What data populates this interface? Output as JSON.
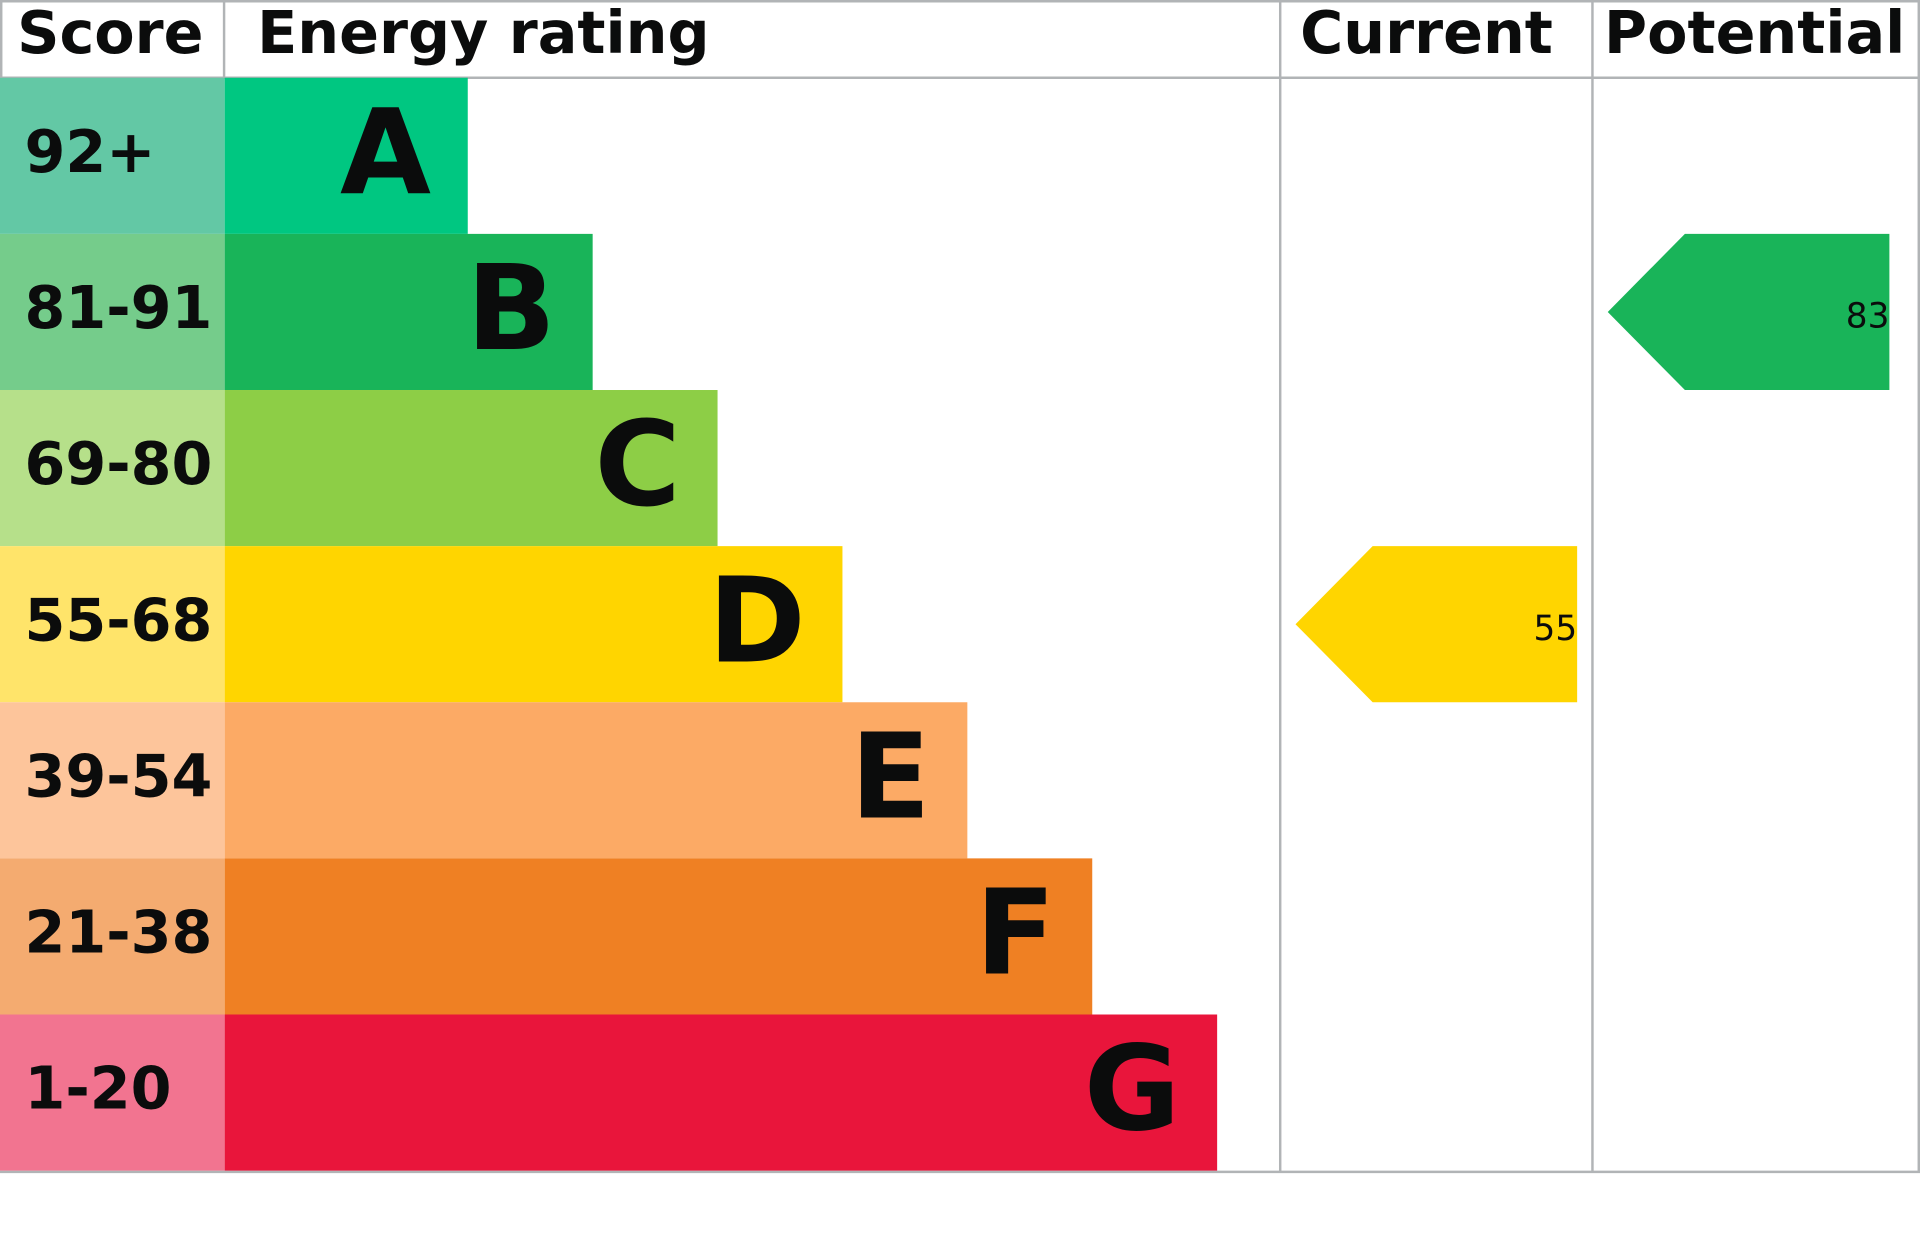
{
  "header": {
    "score": "Score",
    "energy_rating": "Energy rating",
    "current": "Current",
    "potential": "Potential"
  },
  "bands": [
    {
      "score": "92+",
      "letter": "A",
      "color": "#00c781",
      "score_color": "#63c8a5"
    },
    {
      "score": "81-91",
      "letter": "B",
      "color": "#19b459",
      "score_color": "#75cc8b"
    },
    {
      "score": "69-80",
      "letter": "C",
      "color": "#8dce46",
      "score_color": "#b6e08a"
    },
    {
      "score": "55-68",
      "letter": "D",
      "color": "#ffd500",
      "score_color": "#ffe46a"
    },
    {
      "score": "39-54",
      "letter": "E",
      "color": "#fcaa65",
      "score_color": "#fdc59b"
    },
    {
      "score": "21-38",
      "letter": "F",
      "color": "#ef8023",
      "score_color": "#f4ab70"
    },
    {
      "score": "1-20",
      "letter": "G",
      "color": "#e9153b",
      "score_color": "#f27490"
    }
  ],
  "current": {
    "value": 55
  },
  "potential": {
    "value": 83
  }
}
